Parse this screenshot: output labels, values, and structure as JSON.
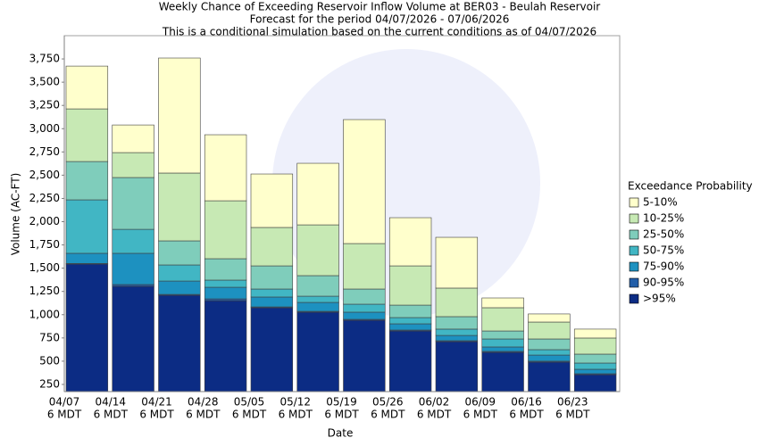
{
  "chart_data": {
    "type": "stacked_bar",
    "title": "Weekly Chance of Exceeding Reservoir Inflow Volume at BER03 - Beulah Reservoir",
    "subtitle": [
      "Forecast for the period 04/07/2026 - 07/06/2026",
      "This is a conditional simulation based on the current conditions as of 04/07/2026"
    ],
    "x_label": "Date",
    "y_label": "Volume (AC-FT)",
    "legend_title": "Exceedance Probability",
    "categories": [
      "04/07",
      "04/14",
      "04/21",
      "04/28",
      "05/05",
      "05/12",
      "05/19",
      "05/26",
      "06/02",
      "06/09",
      "06/16",
      "06/23"
    ],
    "category_sublabel": "6 MDT",
    "series": [
      {
        "name": ">95%",
        "color": "#0c2c84",
        "values": [
          1544,
          1305,
          1209,
          1151,
          1075,
          1027,
          940,
          825,
          710,
          595,
          490,
          355
        ]
      },
      {
        "name": "90-95%",
        "color": "#225ea8",
        "values": [
          6,
          19,
          9,
          19,
          9,
          9,
          10,
          10,
          10,
          10,
          10,
          10
        ]
      },
      {
        "name": "75-90%",
        "color": "#1d91c0",
        "values": [
          110,
          336,
          144,
          125,
          106,
          96,
          77,
          67,
          57,
          48,
          66,
          48
        ]
      },
      {
        "name": "50-75%",
        "color": "#41b6c4",
        "values": [
          575,
          258,
          173,
          77,
          86,
          67,
          86,
          67,
          68,
          86,
          58,
          67
        ]
      },
      {
        "name": "25-50%",
        "color": "#7fcdbb",
        "values": [
          412,
          557,
          259,
          230,
          249,
          221,
          163,
          134,
          134,
          86,
          115,
          96
        ]
      },
      {
        "name": "10-25%",
        "color": "#c7e9b4",
        "values": [
          566,
          268,
          729,
          623,
          413,
          546,
          489,
          422,
          307,
          250,
          182,
          173
        ]
      },
      {
        "name": "5-10%",
        "color": "#ffffcc",
        "values": [
          460,
          297,
          1237,
          710,
          575,
          662,
          1333,
          518,
          546,
          105,
          87,
          96
        ]
      }
    ],
    "ylim": [
      173,
      4000
    ],
    "yticks": [
      250,
      500,
      750,
      {
        "value": 1000,
        "label": "1,000"
      },
      {
        "value": 1250,
        "label": "1,250"
      },
      {
        "value": 1500,
        "label": "1,500"
      },
      {
        "value": 1750,
        "label": "1,750"
      },
      {
        "value": 2000,
        "label": "2,000"
      },
      {
        "value": 2250,
        "label": "2,250"
      },
      {
        "value": 2500,
        "label": "2,500"
      },
      {
        "value": 2750,
        "label": "2,750"
      },
      {
        "value": 3000,
        "label": "3,000"
      },
      {
        "value": 3250,
        "label": "3,250"
      },
      {
        "value": 3500,
        "label": "3,500"
      },
      {
        "value": 3750,
        "label": "3,750"
      }
    ],
    "grid": false,
    "legend": "right"
  }
}
